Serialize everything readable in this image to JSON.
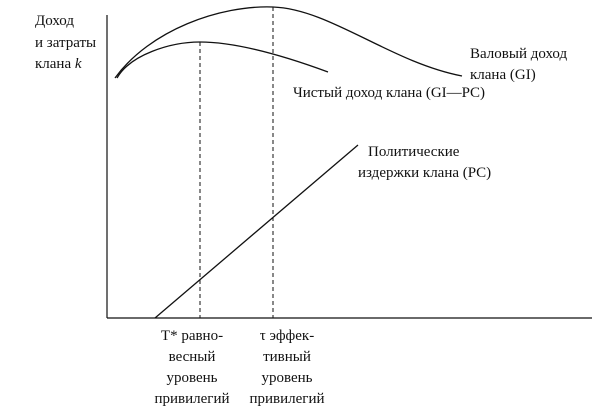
{
  "axis_label": {
    "lines": [
      "Доход",
      "и затраты"
    ],
    "last_line": "клана",
    "variable": "k"
  },
  "curves": {
    "gross_income": {
      "lines": [
        "Валовый доход",
        "клана (GI)"
      ]
    },
    "net_income": {
      "label": "Чистый доход клана (GI—PC)"
    },
    "political_costs": {
      "lines": [
        "Политические",
        "издержки клана (PC)"
      ]
    }
  },
  "x_marks": [
    {
      "lines": [
        "T* равно-",
        "весный",
        "уровень",
        "привилегий"
      ]
    },
    {
      "lines": [
        "τ эффек-",
        "тивный",
        "уровень",
        "привилегий"
      ]
    }
  ]
}
